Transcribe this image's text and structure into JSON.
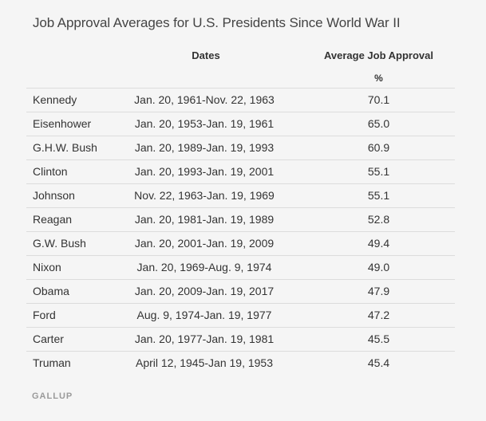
{
  "chart_data": {
    "type": "table",
    "title": "Job Approval Averages for U.S. Presidents Since World War II",
    "columns": [
      {
        "key": "president",
        "label": ""
      },
      {
        "key": "dates",
        "label": "Dates"
      },
      {
        "key": "average",
        "label": "Average Job Approval",
        "unit": "%"
      }
    ],
    "rows": [
      {
        "president": "Kennedy",
        "dates": "Jan. 20, 1961-Nov. 22, 1963",
        "average": "70.1"
      },
      {
        "president": "Eisenhower",
        "dates": "Jan. 20, 1953-Jan. 19, 1961",
        "average": "65.0"
      },
      {
        "president": "G.H.W. Bush",
        "dates": "Jan. 20, 1989-Jan. 19, 1993",
        "average": "60.9"
      },
      {
        "president": "Clinton",
        "dates": "Jan. 20, 1993-Jan. 19, 2001",
        "average": "55.1"
      },
      {
        "president": "Johnson",
        "dates": "Nov. 22, 1963-Jan. 19, 1969",
        "average": "55.1"
      },
      {
        "president": "Reagan",
        "dates": "Jan. 20, 1981-Jan. 19, 1989",
        "average": "52.8"
      },
      {
        "president": "G.W. Bush",
        "dates": "Jan. 20, 2001-Jan. 19, 2009",
        "average": "49.4"
      },
      {
        "president": "Nixon",
        "dates": "Jan. 20, 1969-Aug. 9, 1974",
        "average": "49.0"
      },
      {
        "president": "Obama",
        "dates": "Jan. 20, 2009-Jan. 19, 2017",
        "average": "47.9"
      },
      {
        "president": "Ford",
        "dates": "Aug. 9, 1974-Jan. 19, 1977",
        "average": "47.2"
      },
      {
        "president": "Carter",
        "dates": "Jan. 20, 1977-Jan. 19, 1981",
        "average": "45.5"
      },
      {
        "president": "Truman",
        "dates": "April 12, 1945-Jan 19, 1953",
        "average": "45.4"
      }
    ],
    "source": "GALLUP"
  }
}
